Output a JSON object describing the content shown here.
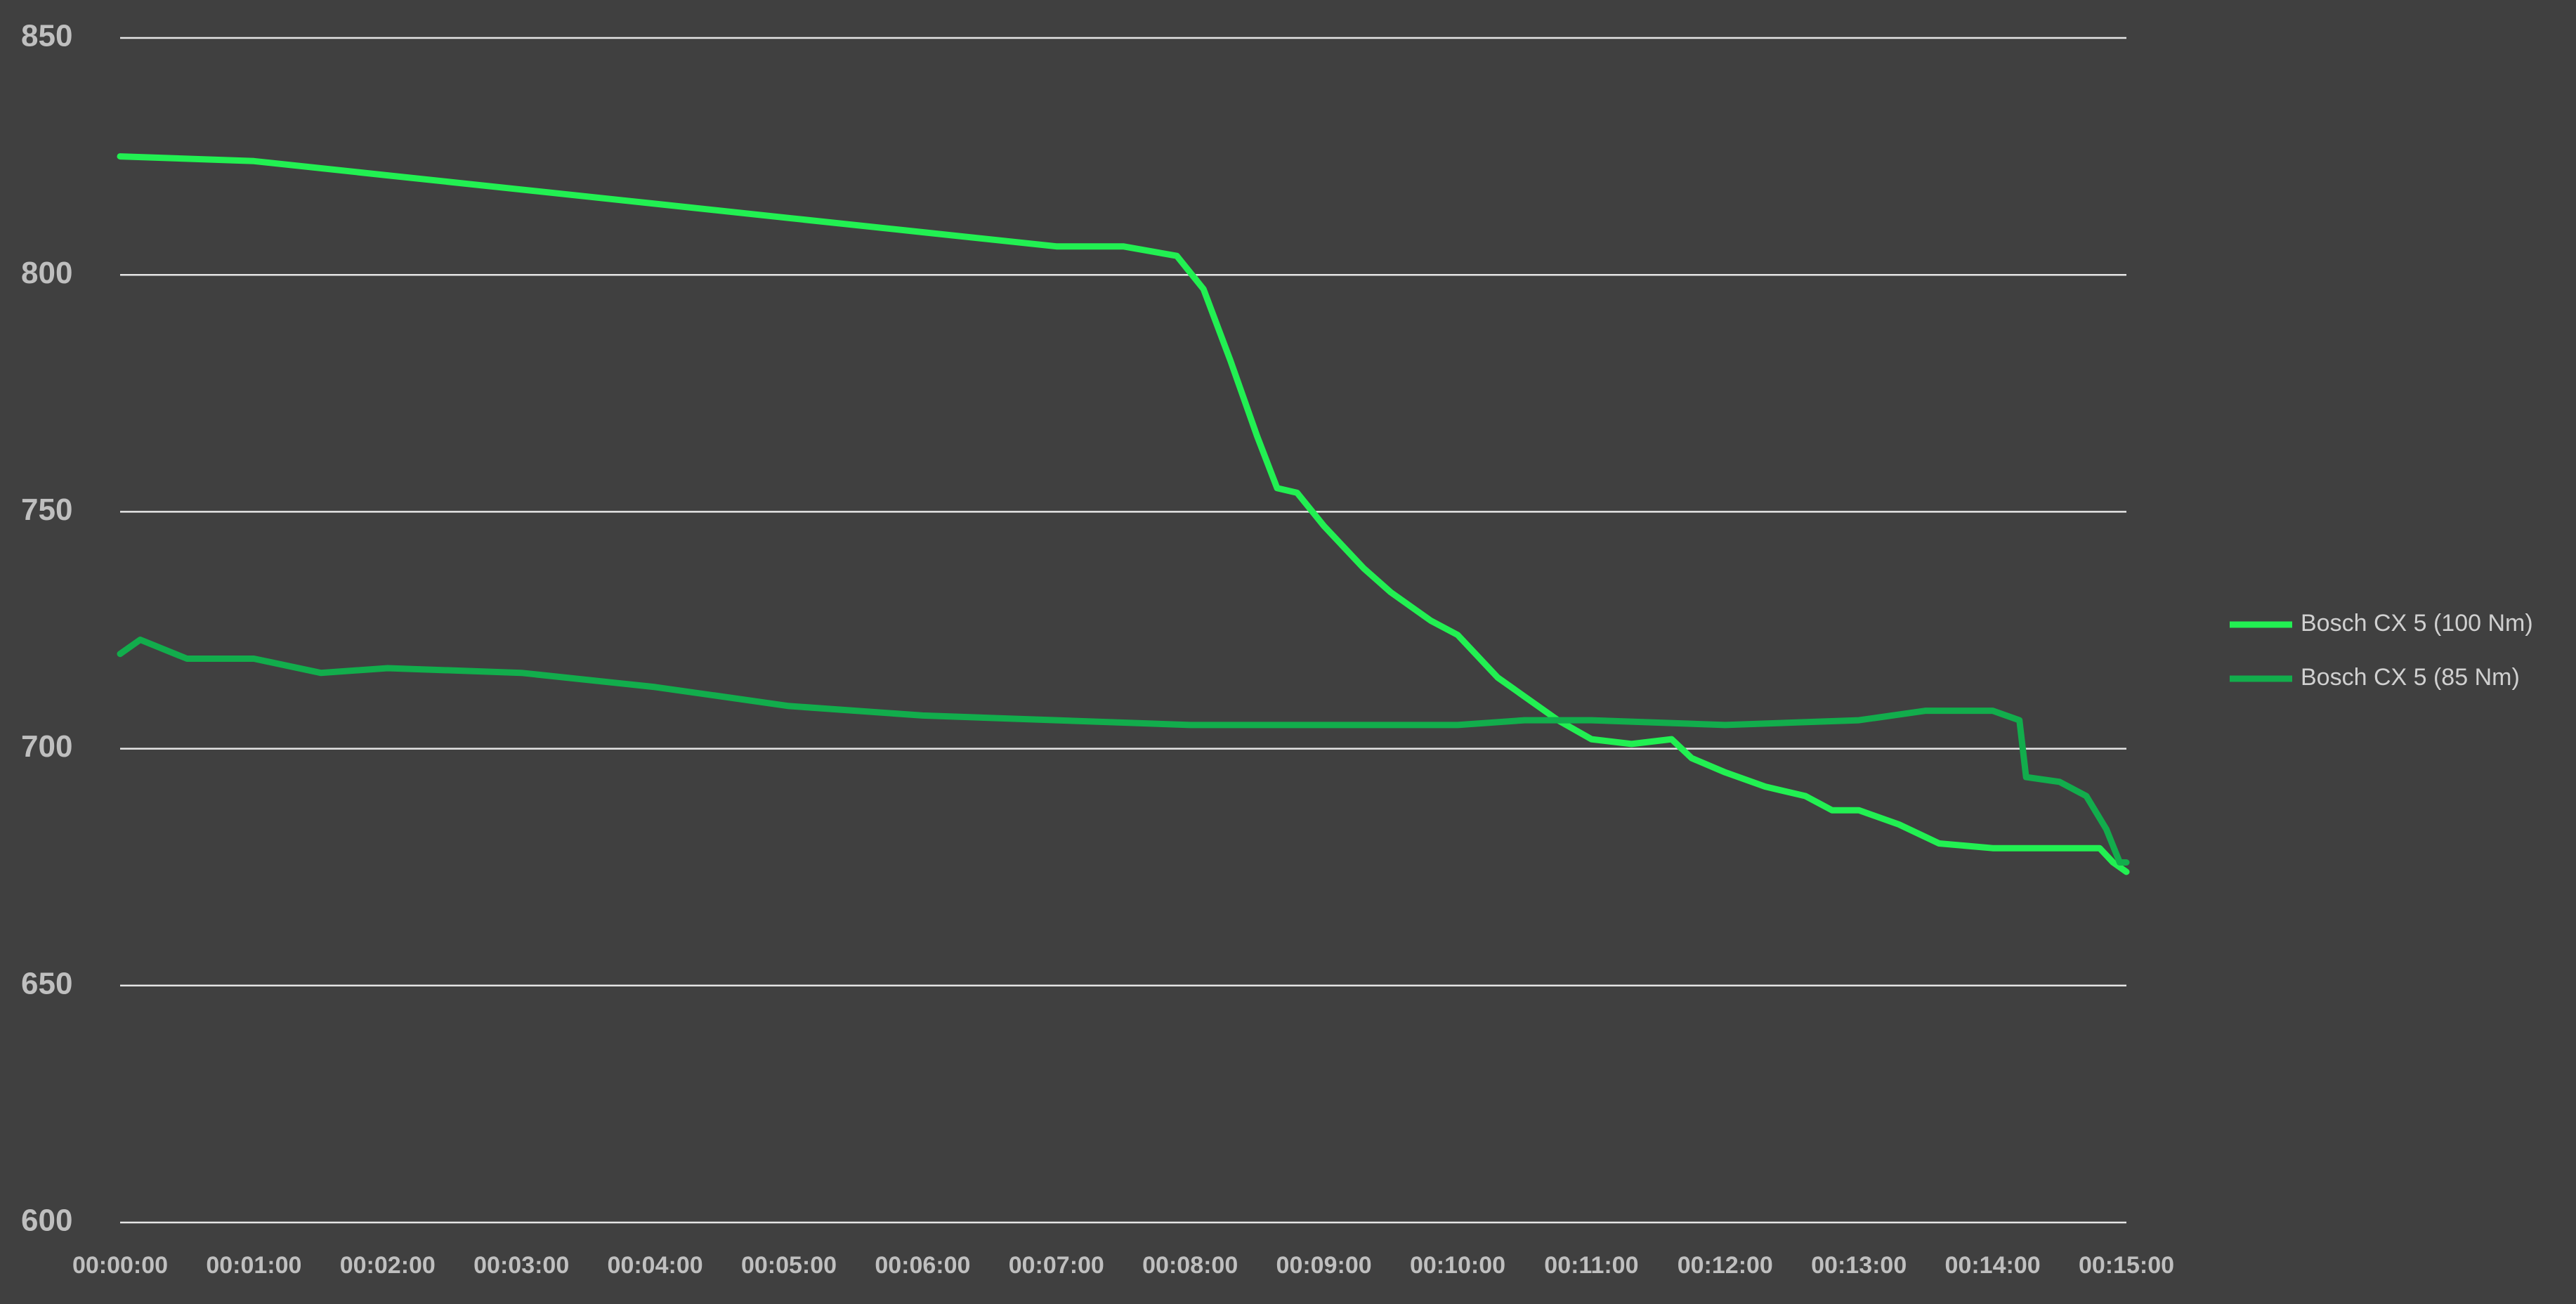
{
  "chart_data": {
    "type": "line",
    "series": [
      {
        "name": "Bosch CX 5 (100 Nm)",
        "color": "#22f052",
        "x": [
          0,
          60,
          120,
          180,
          240,
          300,
          360,
          420,
          450,
          474,
          486,
          498,
          510,
          519,
          528,
          540,
          558,
          570,
          588,
          600,
          618,
          630,
          645,
          660,
          678,
          696,
          705,
          720,
          738,
          756,
          768,
          780,
          798,
          816,
          840,
          870,
          888,
          894,
          900
        ],
        "values": [
          825,
          824,
          821,
          818,
          815,
          812,
          809,
          806,
          806,
          804,
          797,
          782,
          766,
          755,
          754,
          747,
          738,
          733,
          727,
          724,
          715,
          711,
          706,
          702,
          701,
          702,
          698,
          695,
          692,
          690,
          687,
          687,
          684,
          680,
          679,
          679,
          679,
          676,
          674
        ]
      },
      {
        "name": "Bosch CX 5 (85 Nm)",
        "color": "#12ad4c",
        "x": [
          0,
          9,
          30,
          60,
          90,
          120,
          180,
          240,
          300,
          360,
          420,
          480,
          540,
          600,
          630,
          660,
          720,
          780,
          810,
          840,
          852,
          855,
          870,
          882,
          891,
          897,
          900
        ],
        "values": [
          720,
          723,
          719,
          719,
          716,
          717,
          716,
          713,
          709,
          707,
          706,
          705,
          705,
          705,
          706,
          706,
          705,
          706,
          708,
          708,
          706,
          694,
          693,
          690,
          683,
          676,
          676
        ]
      }
    ],
    "xlim": [
      0,
      900
    ],
    "xticks": [
      {
        "value": 0,
        "label": "00:00:00"
      },
      {
        "value": 60,
        "label": "00:01:00"
      },
      {
        "value": 120,
        "label": "00:02:00"
      },
      {
        "value": 180,
        "label": "00:03:00"
      },
      {
        "value": 240,
        "label": "00:04:00"
      },
      {
        "value": 300,
        "label": "00:05:00"
      },
      {
        "value": 360,
        "label": "00:06:00"
      },
      {
        "value": 420,
        "label": "00:07:00"
      },
      {
        "value": 480,
        "label": "00:08:00"
      },
      {
        "value": 540,
        "label": "00:09:00"
      },
      {
        "value": 600,
        "label": "00:10:00"
      },
      {
        "value": 660,
        "label": "00:11:00"
      },
      {
        "value": 720,
        "label": "00:12:00"
      },
      {
        "value": 780,
        "label": "00:13:00"
      },
      {
        "value": 840,
        "label": "00:14:00"
      },
      {
        "value": 900,
        "label": "00:15:00"
      }
    ],
    "ylim": [
      600,
      850
    ],
    "yticks": [
      600,
      650,
      700,
      750,
      800,
      850
    ],
    "grid": true,
    "legend": "right"
  }
}
